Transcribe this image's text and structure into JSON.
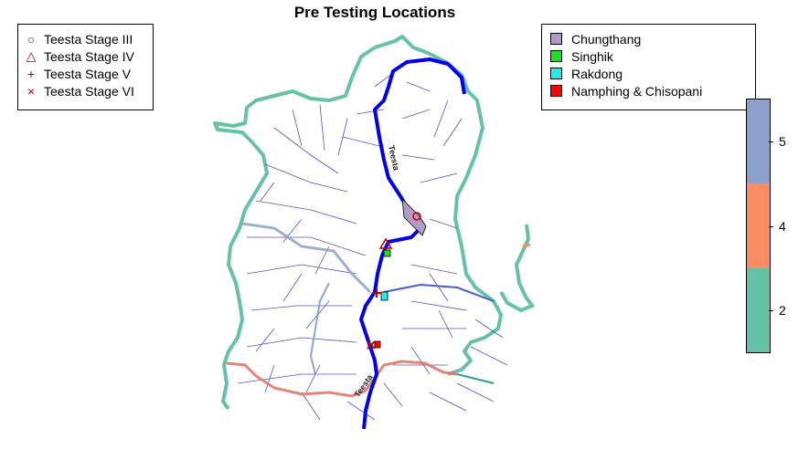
{
  "title": "Pre Testing Locations",
  "legend_stations": [
    {
      "symbol": "○",
      "label": "Teesta Stage III"
    },
    {
      "symbol": "△",
      "label": "Teesta Stage IV"
    },
    {
      "symbol": "+",
      "label": "Teesta Stage V"
    },
    {
      "symbol": "×",
      "label": "Teesta Stage VI"
    }
  ],
  "legend_areas": [
    {
      "color": "#b39bc8",
      "label": "Chungthang"
    },
    {
      "color": "#22dd22",
      "label": "Singhik"
    },
    {
      "color": "#22eeee",
      "label": "Rakdong"
    },
    {
      "color": "#ff0000",
      "label": "Namphing & Chisopani"
    }
  ],
  "river_labels": {
    "upper": "Teesta",
    "lower": "Teesta"
  },
  "colorbar": {
    "labels": [
      "2",
      "4",
      "5"
    ],
    "colors": [
      "#66c2a5",
      "#fc8d62",
      "#8da0cb"
    ]
  },
  "colors": {
    "boundary": "#66c2a5",
    "main_river": "#0000ee",
    "drainage": "#1a1aa8",
    "marker": "#c00000"
  }
}
